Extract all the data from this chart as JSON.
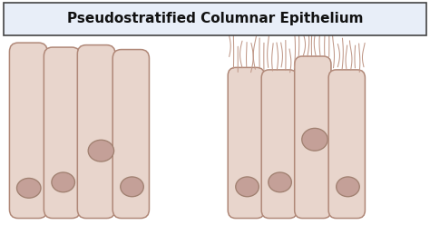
{
  "title": "Pseudostratified Columnar Epithelium",
  "title_fontsize": 11,
  "title_bg": "#e8eef8",
  "bg_color": "#ffffff",
  "cell_fill": "#e8d5cc",
  "cell_edge": "#b08878",
  "nucleus_fill": "#c4a098",
  "nucleus_edge": "#a08070",
  "cilia_color": "#c09888",
  "fig_width": 4.74,
  "fig_height": 2.48,
  "dpi": 100
}
